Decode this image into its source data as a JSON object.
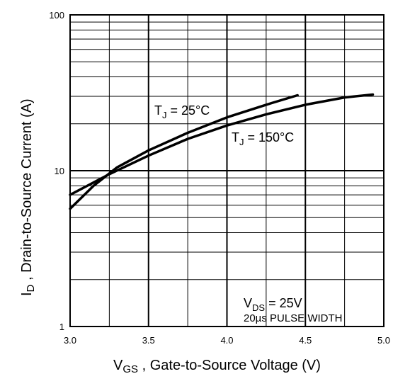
{
  "chart_data": {
    "type": "line",
    "xlabel": "V",
    "xlabel_sub": "GS",
    "xlabel_rest": " , Gate-to-Source Voltage (V)",
    "ylabel": "I",
    "ylabel_sub": "D",
    "ylabel_rest": " , Drain-to-Source Current (A)",
    "xlim": [
      3.0,
      5.0
    ],
    "ylim": [
      1,
      100
    ],
    "yscale": "log",
    "grid": true,
    "x_ticks": [
      "3.0",
      "3.5",
      "4.0",
      "4.5",
      "5.0"
    ],
    "y_ticks": [
      "1",
      "10",
      "100"
    ],
    "series": [
      {
        "label_main": "T",
        "label_sub": "J",
        "label_rest": " = 25°C",
        "x": [
          3.0,
          3.15,
          3.3,
          3.5,
          3.75,
          4.0,
          4.25,
          4.45
        ],
        "y": [
          5.7,
          8.0,
          10.5,
          13.5,
          17.5,
          22.0,
          26.5,
          30.5
        ]
      },
      {
        "label_main": "T",
        "label_sub": "J",
        "label_rest": " = 150°C",
        "x": [
          3.0,
          3.25,
          3.5,
          3.75,
          4.0,
          4.25,
          4.5,
          4.75,
          4.93
        ],
        "y": [
          7.0,
          9.5,
          12.5,
          16.0,
          19.5,
          23.0,
          26.5,
          29.5,
          30.8
        ]
      }
    ],
    "annotation": {
      "vds_main": "V",
      "vds_sub": "DS",
      "vds_rest": " = 25V",
      "pulse": "20µs PULSE WIDTH"
    }
  }
}
